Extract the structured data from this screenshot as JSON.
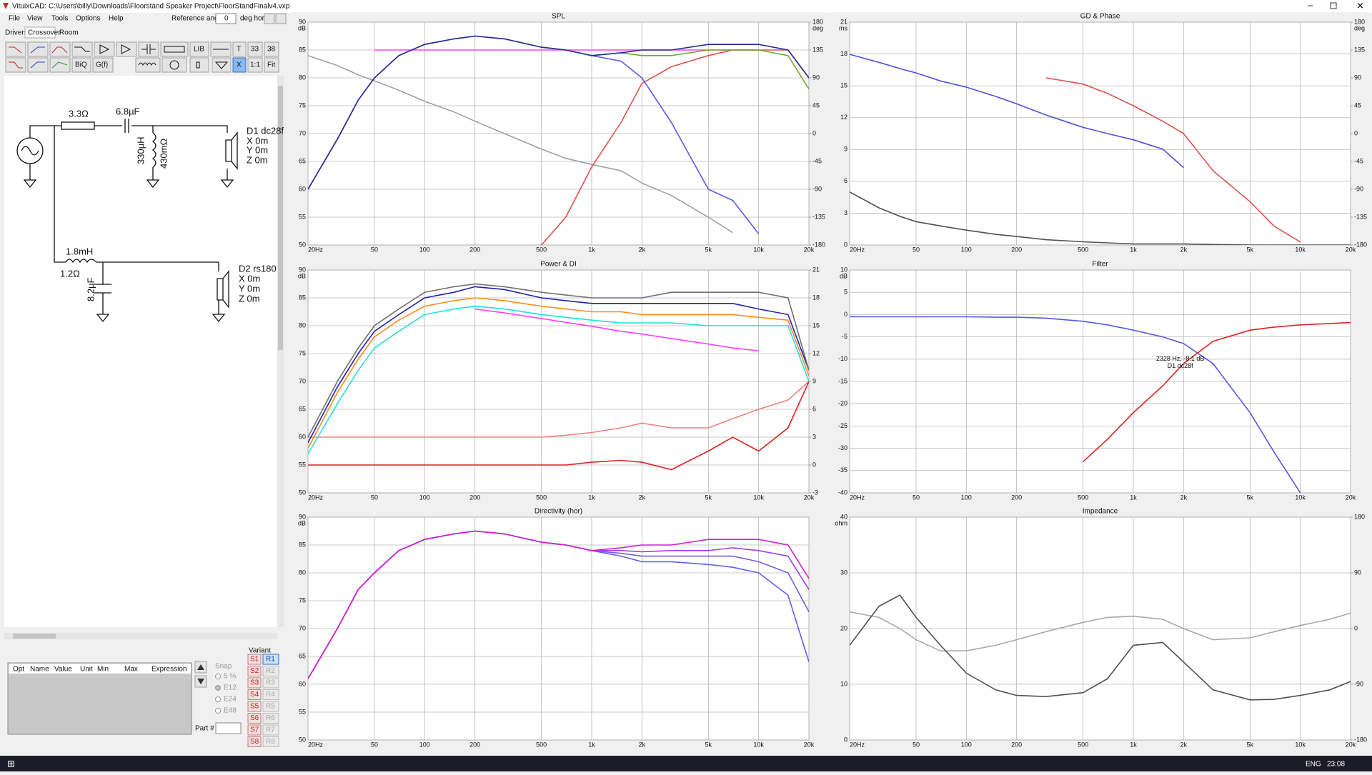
{
  "window": {
    "title": "VituixCAD: C:\\Users\\billy\\Downloads\\Floorstand Speaker Project\\FloorStandFinalv4.vxp"
  },
  "menu": [
    "File",
    "View",
    "Tools",
    "Options",
    "Help"
  ],
  "reference_angle": {
    "label": "Reference angle",
    "value": "0",
    "unit": "deg hor"
  },
  "tabs": [
    "Drivers",
    "Crossover",
    "Room"
  ],
  "toolbar": [
    "LIB",
    "T",
    "33",
    "38",
    "BiQ",
    "G(f)",
    "X",
    "1:1",
    "Fit"
  ],
  "schematic": {
    "labels": [
      "3.3Ω",
      "6.8µF",
      "330µH",
      "430mΩ",
      "D1 dc28f",
      "X 0m",
      "Y 0m",
      "Z 0m",
      "1.8mH",
      "1.2Ω",
      "8.2µF",
      "D2 rs180",
      "X 0m",
      "Y 0m",
      "Z 0m"
    ]
  },
  "parameters": {
    "headers": [
      "Opt",
      "Name",
      "Value",
      "Unit",
      "Min",
      "Max",
      "Expression"
    ]
  },
  "snap": {
    "label": "Snap",
    "options": [
      "5 %",
      "E12",
      "E24",
      "E48"
    ]
  },
  "variant": {
    "label": "Variant",
    "s": [
      "S1",
      "S2",
      "S3",
      "S4",
      "S5",
      "S6",
      "S7",
      "S8"
    ],
    "r": [
      "R1",
      "R2",
      "R3",
      "R4",
      "R5",
      "R6",
      "R7",
      "R8"
    ]
  },
  "part": "Part #",
  "taskbar": {
    "language": "ENG",
    "time": "23:08"
  },
  "chart_data": [
    {
      "type": "line",
      "title": "SPL",
      "log_x": true,
      "grid": true,
      "x": [
        20,
        30,
        40,
        50,
        70,
        100,
        150,
        200,
        300,
        500,
        700,
        1000,
        1500,
        2000,
        3000,
        5000,
        7000,
        10000,
        15000,
        20000
      ],
      "xlim": [
        20,
        20000
      ],
      "xticks": [
        {
          "value": 20,
          "label": "20Hz"
        },
        50,
        100,
        200,
        500,
        {
          "value": 1000,
          "label": "1k"
        },
        {
          "value": 2000,
          "label": "2k"
        },
        {
          "value": 5000,
          "label": "5k"
        },
        {
          "value": 10000,
          "label": "10k"
        },
        {
          "value": 20000,
          "label": "20k"
        }
      ],
      "ylim": [
        50,
        90
      ],
      "yticks": [
        50,
        55,
        60,
        65,
        70,
        75,
        80,
        85,
        90
      ],
      "y_unit": "dB",
      "y2lim": [
        -180,
        180
      ],
      "y2ticks": [
        -180,
        -135,
        -90,
        -45,
        0,
        45,
        90,
        135,
        180
      ],
      "y2_unit": "deg",
      "series": [
        {
          "color": "#a0a0a0",
          "axis": "y2",
          "values": [
            126,
            110,
            95,
            85,
            70,
            52,
            35,
            20,
            0,
            -25,
            -40,
            -50,
            -60,
            -80,
            -100,
            -135,
            -160,
            null,
            null,
            null
          ]
        },
        {
          "color": "#ff40ff",
          "values": [
            null,
            null,
            null,
            85,
            85,
            85,
            85,
            85,
            85,
            85,
            85,
            85,
            85,
            85,
            85,
            85,
            85,
            85,
            null,
            null
          ]
        },
        {
          "color": "#e05050",
          "values": [
            null,
            null,
            null,
            null,
            null,
            null,
            null,
            null,
            null,
            50,
            55,
            64,
            72,
            79,
            82,
            84,
            85,
            85,
            85,
            80
          ]
        },
        {
          "color": "#5a5ae6",
          "values": [
            60,
            69,
            76,
            80,
            84,
            86,
            87,
            87.5,
            87,
            85.5,
            85,
            84,
            83,
            80,
            72,
            60,
            58,
            52,
            null,
            null
          ]
        },
        {
          "color": "#70a830",
          "values": [
            null,
            null,
            null,
            null,
            null,
            null,
            null,
            null,
            null,
            85.5,
            85,
            84,
            84.5,
            84,
            84,
            85,
            85,
            85,
            84,
            78
          ]
        },
        {
          "color": "#2b2b8c",
          "values": [
            60,
            69,
            76,
            80,
            84,
            86,
            87,
            87.5,
            87,
            85.5,
            85,
            84,
            84.5,
            85,
            85,
            86,
            86,
            86,
            85,
            80
          ]
        }
      ]
    },
    {
      "type": "line",
      "title": "GD & Phase",
      "log_x": true,
      "grid": true,
      "x": [
        20,
        30,
        40,
        50,
        70,
        100,
        150,
        200,
        300,
        500,
        700,
        1000,
        1500,
        2000,
        3000,
        5000,
        7000,
        10000,
        15000,
        20000
      ],
      "xlim": [
        20,
        20000
      ],
      "xticks": [
        {
          "value": 20,
          "label": "20Hz"
        },
        50,
        100,
        200,
        500,
        {
          "value": 1000,
          "label": "1k"
        },
        {
          "value": 2000,
          "label": "2k"
        },
        {
          "value": 5000,
          "label": "5k"
        },
        {
          "value": 10000,
          "label": "10k"
        },
        {
          "value": 20000,
          "label": "20k"
        }
      ],
      "ylim": [
        0,
        21
      ],
      "yticks": [
        0,
        3,
        6,
        9,
        12,
        15,
        18,
        21
      ],
      "y_unit": "ms",
      "y2lim": [
        -180,
        180
      ],
      "y2ticks": [
        -180,
        -135,
        -90,
        -45,
        0,
        45,
        90,
        135,
        180
      ],
      "y2_unit": "deg",
      "series": [
        {
          "color": "#5050e0",
          "axis": "y2",
          "values": [
            128,
            115,
            105,
            98,
            85,
            75,
            60,
            48,
            30,
            10,
            0,
            -10,
            -25,
            -55,
            null,
            null,
            null,
            null,
            null,
            null
          ]
        },
        {
          "color": "#e05050",
          "axis": "y2",
          "values": [
            null,
            null,
            null,
            null,
            null,
            null,
            null,
            null,
            90,
            80,
            65,
            45,
            20,
            0,
            -60,
            -110,
            -150,
            -175,
            null,
            null
          ]
        },
        {
          "color": "#505050",
          "values": [
            5,
            3.5,
            2.7,
            2.2,
            1.8,
            1.4,
            1,
            0.8,
            0.5,
            0.3,
            0.2,
            0.1,
            0.1,
            0.1,
            0.05,
            0,
            0,
            0,
            0,
            0
          ]
        }
      ]
    },
    {
      "type": "line",
      "title": "Power & DI",
      "log_x": true,
      "grid": true,
      "x": [
        20,
        30,
        40,
        50,
        70,
        100,
        150,
        200,
        300,
        500,
        700,
        1000,
        1500,
        2000,
        3000,
        5000,
        7000,
        10000,
        15000,
        20000
      ],
      "xlim": [
        20,
        20000
      ],
      "xticks": [
        {
          "value": 20,
          "label": "20Hz"
        },
        50,
        100,
        200,
        500,
        {
          "value": 1000,
          "label": "1k"
        },
        {
          "value": 2000,
          "label": "2k"
        },
        {
          "value": 5000,
          "label": "5k"
        },
        {
          "value": 10000,
          "label": "10k"
        },
        {
          "value": 20000,
          "label": "20k"
        }
      ],
      "ylim": [
        50,
        90
      ],
      "yticks": [
        50,
        55,
        60,
        65,
        70,
        75,
        80,
        85,
        90
      ],
      "y_unit": "dB",
      "y2lim": [
        -3,
        21
      ],
      "y2ticks": [
        -3,
        0,
        3,
        6,
        9,
        12,
        15,
        18,
        21
      ],
      "series": [
        {
          "color": "#f08080",
          "axis": "y2",
          "values": [
            3,
            3,
            3,
            3,
            3,
            3,
            3,
            3,
            3,
            3,
            3.2,
            3.5,
            4,
            4.5,
            4,
            4,
            5,
            6,
            7,
            9
          ]
        },
        {
          "color": "#e02020",
          "axis": "y2",
          "values": [
            0,
            0,
            0,
            0,
            0,
            0,
            0,
            0,
            0,
            0,
            0,
            0.3,
            0.5,
            0.3,
            -0.5,
            1.5,
            3,
            1.5,
            4,
            9
          ]
        },
        {
          "color": "#ff40ff",
          "values": [
            null,
            null,
            null,
            null,
            null,
            null,
            null,
            83,
            82.3,
            81.3,
            80.6,
            79.9,
            79,
            78.5,
            77.7,
            76.7,
            76,
            75.5,
            null,
            null
          ]
        },
        {
          "color": "#20e0e0",
          "values": [
            57,
            66,
            72,
            76,
            79,
            82,
            83,
            83.5,
            83,
            82,
            81.5,
            81,
            80.5,
            80.5,
            80.5,
            80,
            80,
            80,
            80,
            70
          ]
        },
        {
          "color": "#ff8c1a",
          "values": [
            58,
            68,
            74,
            78,
            81,
            83.5,
            84.5,
            85,
            84.5,
            83.5,
            83,
            82.5,
            82.5,
            82,
            82,
            82,
            82,
            81.5,
            81,
            71
          ]
        },
        {
          "color": "#2020b0",
          "values": [
            59,
            69,
            75,
            79,
            82,
            85,
            86,
            87,
            86.5,
            85,
            84.5,
            84,
            84,
            84,
            84,
            84,
            84,
            83,
            82,
            72
          ]
        },
        {
          "color": "#707070",
          "values": [
            60,
            70,
            76,
            80,
            83,
            86,
            87,
            87.5,
            87,
            86,
            85.5,
            85,
            85,
            85,
            86,
            86,
            86,
            86,
            85,
            72
          ]
        }
      ]
    },
    {
      "type": "line",
      "title": "Filter",
      "log_x": true,
      "grid": true,
      "x": [
        20,
        30,
        40,
        50,
        70,
        100,
        150,
        200,
        300,
        500,
        700,
        1000,
        1500,
        2000,
        3000,
        5000,
        7000,
        10000,
        15000,
        20000
      ],
      "xlim": [
        20,
        20000
      ],
      "xticks": [
        {
          "value": 20,
          "label": "20Hz"
        },
        50,
        100,
        200,
        500,
        {
          "value": 1000,
          "label": "1k"
        },
        {
          "value": 2000,
          "label": "2k"
        },
        {
          "value": 5000,
          "label": "5k"
        },
        {
          "value": 10000,
          "label": "10k"
        },
        {
          "value": 20000,
          "label": "20k"
        }
      ],
      "ylim": [
        -40,
        10
      ],
      "yticks": [
        -40,
        -35,
        -30,
        -25,
        -20,
        -15,
        -10,
        -5,
        0,
        5,
        10
      ],
      "y_unit": "dB",
      "annotations": [
        "2328 Hz, -8.1 dB",
        "D1 dc28f"
      ],
      "series": [
        {
          "color": "#5858e0",
          "values": [
            -0.5,
            -0.5,
            -0.5,
            -0.5,
            -0.5,
            -0.5,
            -0.6,
            -0.6,
            -0.8,
            -1.5,
            -2.3,
            -3.5,
            -5,
            -6.5,
            -11,
            -22,
            -31,
            -40,
            null,
            null
          ]
        },
        {
          "color": "#e02020",
          "values": [
            null,
            null,
            null,
            null,
            null,
            null,
            null,
            null,
            null,
            -33,
            -28,
            -22,
            -16,
            -11,
            -6,
            -3.5,
            -2.8,
            -2.3,
            -2,
            -1.8
          ]
        }
      ]
    },
    {
      "type": "line",
      "title": "Directivity (hor)",
      "log_x": true,
      "grid": true,
      "x": [
        20,
        30,
        40,
        50,
        70,
        100,
        150,
        200,
        300,
        500,
        700,
        1000,
        1500,
        2000,
        3000,
        5000,
        7000,
        10000,
        15000,
        20000
      ],
      "xlim": [
        20,
        20000
      ],
      "xticks": [
        {
          "value": 20,
          "label": "20Hz"
        },
        50,
        100,
        200,
        500,
        {
          "value": 1000,
          "label": "1k"
        },
        {
          "value": 2000,
          "label": "2k"
        },
        {
          "value": 5000,
          "label": "5k"
        },
        {
          "value": 10000,
          "label": "10k"
        },
        {
          "value": 20000,
          "label": "20k"
        }
      ],
      "ylim": [
        50,
        90
      ],
      "yticks": [
        50,
        55,
        60,
        65,
        70,
        75,
        80,
        85,
        90
      ],
      "y_unit": "dB",
      "series": [
        {
          "color": "#6060f0",
          "values": [
            61,
            70,
            77,
            80,
            84,
            86,
            87,
            87.5,
            87,
            85.5,
            85,
            84,
            83,
            82,
            82,
            81.5,
            81,
            80,
            76,
            64
          ]
        },
        {
          "color": "#7060e0",
          "values": [
            61,
            70,
            77,
            80,
            84,
            86,
            87,
            87.5,
            87,
            85.5,
            85,
            84,
            83.5,
            83,
            83,
            83,
            83,
            82,
            80,
            73
          ]
        },
        {
          "color": "#a040e0",
          "values": [
            61,
            70,
            77,
            80,
            84,
            86,
            87,
            87.5,
            87,
            85.5,
            85,
            84,
            84,
            83.8,
            84,
            84,
            84.5,
            84,
            83,
            77
          ]
        },
        {
          "color": "#d020d0",
          "values": [
            61,
            70,
            77,
            80,
            84,
            86,
            87,
            87.5,
            87,
            85.5,
            85,
            84,
            84.5,
            85,
            85,
            86,
            86,
            86,
            85,
            79
          ]
        }
      ]
    },
    {
      "type": "line",
      "title": "Impedance",
      "log_x": true,
      "grid": true,
      "x": [
        20,
        30,
        40,
        50,
        70,
        100,
        150,
        200,
        300,
        500,
        700,
        1000,
        1500,
        2000,
        3000,
        5000,
        7000,
        10000,
        15000,
        20000
      ],
      "xlim": [
        20,
        20000
      ],
      "xticks": [
        {
          "value": 20,
          "label": "20Hz"
        },
        50,
        100,
        200,
        500,
        {
          "value": 1000,
          "label": "1k"
        },
        {
          "value": 2000,
          "label": "2k"
        },
        {
          "value": 5000,
          "label": "5k"
        },
        {
          "value": 10000,
          "label": "10k"
        },
        {
          "value": 20000,
          "label": "20k"
        }
      ],
      "ylim": [
        0,
        40
      ],
      "yticks": [
        0,
        10,
        20,
        30,
        40
      ],
      "y_unit": "ohm",
      "y2lim": [
        -180,
        180
      ],
      "y2ticks": [
        -180,
        -90,
        0,
        90,
        180
      ],
      "series": [
        {
          "color": "#a8a8a8",
          "axis": "y2",
          "values": [
            27,
            18,
            0,
            -18,
            -36,
            -36,
            -27,
            -18,
            -5,
            10,
            18,
            20,
            15,
            0,
            -18,
            -15,
            -5,
            5,
            15,
            25
          ]
        },
        {
          "color": "#505050",
          "values": [
            17,
            24,
            26,
            22,
            17,
            12,
            9,
            8,
            7.8,
            8.5,
            11,
            17,
            17.5,
            14,
            9,
            7.2,
            7.3,
            8,
            9,
            10.5
          ]
        }
      ]
    }
  ]
}
